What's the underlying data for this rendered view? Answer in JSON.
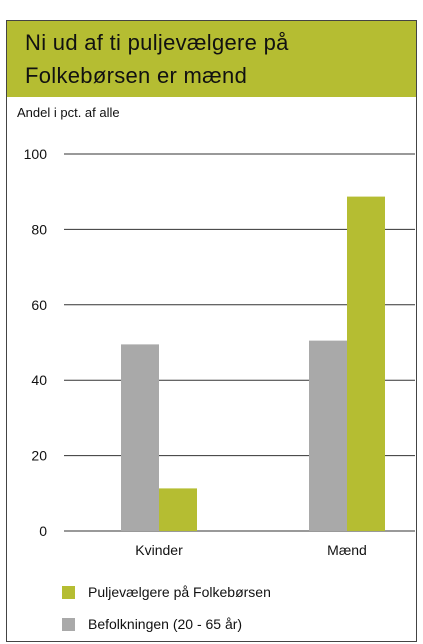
{
  "colors": {
    "accent": "#b5bd32",
    "grey": "#a9a9a9",
    "text": "#111111",
    "grid": "#333333"
  },
  "chart_data": {
    "type": "bar",
    "title": "Ni ud af ti puljevælgere på Folkebørsen er mænd",
    "subtitle": "Andel i pct. af alle",
    "categories": [
      "Kvinder",
      "Mænd"
    ],
    "series": [
      {
        "name": "Befolkningen (20 - 65 år)",
        "color": "#a9a9a9",
        "values": [
          49.5,
          50.5
        ]
      },
      {
        "name": "Puljevælgere på Folkebørsen",
        "color": "#b5bd32",
        "values": [
          11.3,
          88.7
        ]
      }
    ],
    "ylim": [
      0,
      100
    ],
    "yticks": [
      0,
      20,
      40,
      60,
      80,
      100
    ],
    "grid": true,
    "legend_position": "bottom"
  }
}
